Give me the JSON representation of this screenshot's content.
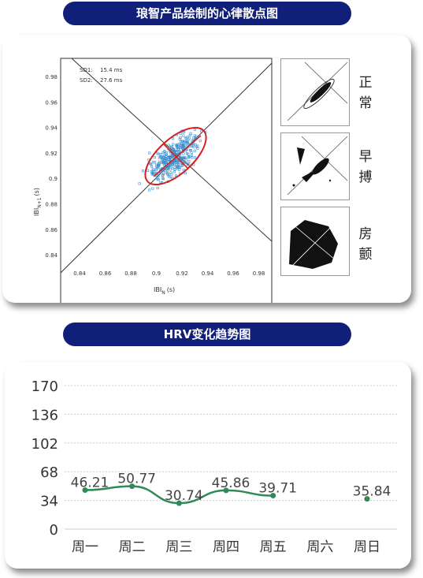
{
  "section1": {
    "title": "琅智产品绘制的心律散点图",
    "scatter": {
      "legend": [
        "SD1:",
        "15.4 ms",
        "SD2:",
        "27.6 ms"
      ],
      "xlabel_main": "IBI",
      "xlabel_sub": "N",
      "xlabel_unit": "(s)",
      "ylabel_main": "IBI",
      "ylabel_sub": "N+1",
      "ylabel_unit": "(s)",
      "xticks": [
        "0.84",
        "0.86",
        "0.88",
        "0.9",
        "0.92",
        "0.94",
        "0.96",
        "0.98"
      ],
      "yticks": [
        "0.98",
        "0.96",
        "0.94",
        "0.92",
        "0.9",
        "0.88",
        "0.86",
        "0.84"
      ]
    },
    "labels": {
      "normal": [
        "正",
        "常"
      ],
      "premature": [
        "早",
        "搏"
      ],
      "afib": [
        "房",
        "颤"
      ]
    }
  },
  "section2": {
    "title": "HRV变化趋势图",
    "chart_data": {
      "type": "line",
      "categories": [
        "周一",
        "周二",
        "周三",
        "周四",
        "周五",
        "周六",
        "周日"
      ],
      "values": [
        46.21,
        50.77,
        30.74,
        45.86,
        39.71,
        null,
        35.84
      ],
      "value_labels": [
        "46.21",
        "50.77",
        "30.74",
        "45.86",
        "39.71",
        "",
        "35.84"
      ],
      "yticks": [
        "170",
        "136",
        "102",
        "68",
        "34",
        "0"
      ],
      "ytick_values": [
        170,
        136,
        102,
        68,
        34,
        0
      ],
      "ylim": [
        0,
        170
      ],
      "grid": true,
      "colors": {
        "line": "#2e8b57",
        "grid": "#cccccc"
      }
    }
  }
}
